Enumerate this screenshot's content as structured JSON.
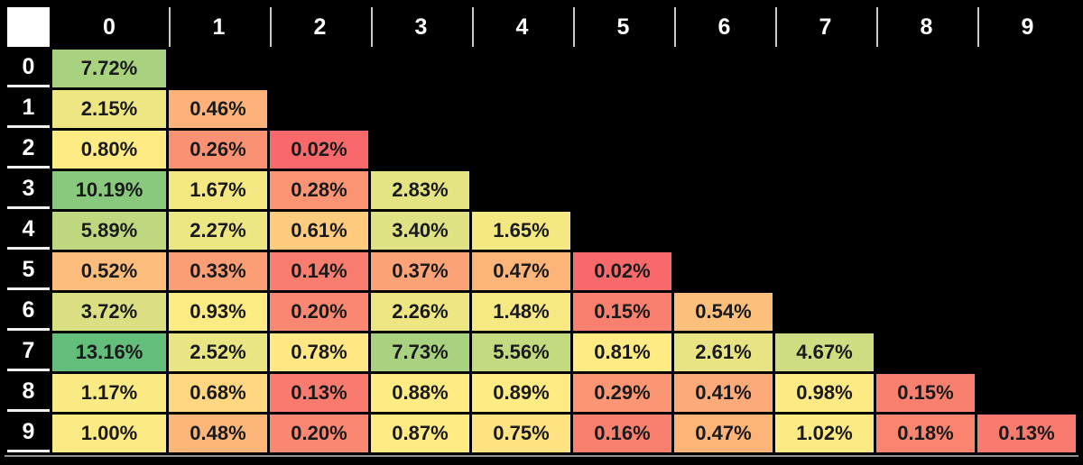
{
  "chart_data": {
    "type": "heatmap",
    "title": "",
    "description": "Lower-triangular percentage matrix with row and column indices 0-9, colored by a red-yellow-green 3-color scale",
    "columns": [
      "0",
      "1",
      "2",
      "3",
      "4",
      "5",
      "6",
      "7",
      "8",
      "9"
    ],
    "rows": [
      "0",
      "1",
      "2",
      "3",
      "4",
      "5",
      "6",
      "7",
      "8",
      "9"
    ],
    "unit": "%",
    "value_decimals": 2,
    "values": [
      [
        7.72
      ],
      [
        2.15,
        0.46
      ],
      [
        0.8,
        0.26,
        0.02
      ],
      [
        10.19,
        1.67,
        0.28,
        2.83
      ],
      [
        5.89,
        2.27,
        0.61,
        3.4,
        1.65
      ],
      [
        0.52,
        0.33,
        0.14,
        0.37,
        0.47,
        0.02
      ],
      [
        3.72,
        0.93,
        0.2,
        2.26,
        1.48,
        0.15,
        0.54
      ],
      [
        13.16,
        2.52,
        0.78,
        7.73,
        5.56,
        0.81,
        2.61,
        4.67
      ],
      [
        1.17,
        0.68,
        0.13,
        0.88,
        0.89,
        0.29,
        0.41,
        0.98,
        0.15
      ],
      [
        1.0,
        0.48,
        0.2,
        0.87,
        0.75,
        0.16,
        0.47,
        1.02,
        0.18,
        0.13
      ]
    ],
    "color_scale": {
      "style": "3-color",
      "min": {
        "value": 0.02,
        "color": "#F8696B"
      },
      "mid": {
        "value": 0.8,
        "color": "#FFEB84"
      },
      "max": {
        "value": 13.16,
        "color": "#63BE7B"
      }
    },
    "layout": {
      "background": "#000000",
      "corner_cell_color": "#FFFFFF",
      "header_text_color": "#FFFFFF",
      "header_divider_color": "#C9C9C9",
      "row_header_underline_color": "#F2F2F2",
      "cell_text_color": "#1A1A1A",
      "grid_gap_color": "#000000",
      "bottom_edge_color": "#909090",
      "legend": "none",
      "grid": "black gaps between colored cells"
    }
  }
}
